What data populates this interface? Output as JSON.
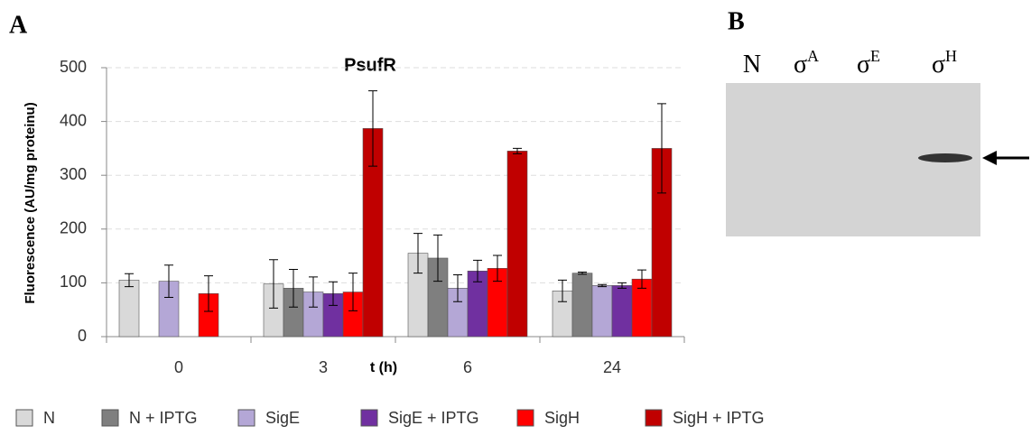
{
  "panel_labels": [
    "A",
    "B"
  ],
  "chart_data": {
    "type": "bar",
    "title": "PsufR",
    "x_label": "t (h)",
    "y_label": "Fluorescence (AU/mg proteinu)",
    "categories": [
      "0",
      "3",
      "6",
      "24"
    ],
    "ylim": [
      0,
      500
    ],
    "yticks": [
      0,
      100,
      200,
      300,
      400,
      500
    ],
    "grid": true,
    "series": [
      {
        "name": "N",
        "color": "#d9d9d9",
        "values": [
          105,
          98,
          155,
          85
        ],
        "errors": [
          12,
          45,
          37,
          20
        ]
      },
      {
        "name": "N + IPTG",
        "color": "#7f7f7f",
        "values": [
          null,
          90,
          146,
          118
        ],
        "errors": [
          null,
          35,
          43,
          2
        ]
      },
      {
        "name": "SigE",
        "color": "#b4a7d6",
        "values": [
          103,
          83,
          90,
          95
        ],
        "errors": [
          30,
          28,
          25,
          2
        ]
      },
      {
        "name": "SigE + IPTG",
        "color": "#7030a0",
        "values": [
          null,
          80,
          122,
          95
        ],
        "errors": [
          null,
          22,
          20,
          5
        ]
      },
      {
        "name": "SigH",
        "color": "#ff0000",
        "values": [
          80,
          83,
          127,
          107
        ],
        "errors": [
          33,
          35,
          24,
          17
        ]
      },
      {
        "name": "SigH + IPTG",
        "color": "#c00000",
        "values": [
          null,
          387,
          345,
          350
        ],
        "errors": [
          null,
          70,
          5,
          83
        ]
      }
    ]
  },
  "gel": {
    "lanes": [
      {
        "text": "N"
      },
      {
        "text": "σ",
        "sup": "A"
      },
      {
        "text": "σ",
        "sup": "E"
      },
      {
        "text": "σ",
        "sup": "H"
      }
    ]
  }
}
